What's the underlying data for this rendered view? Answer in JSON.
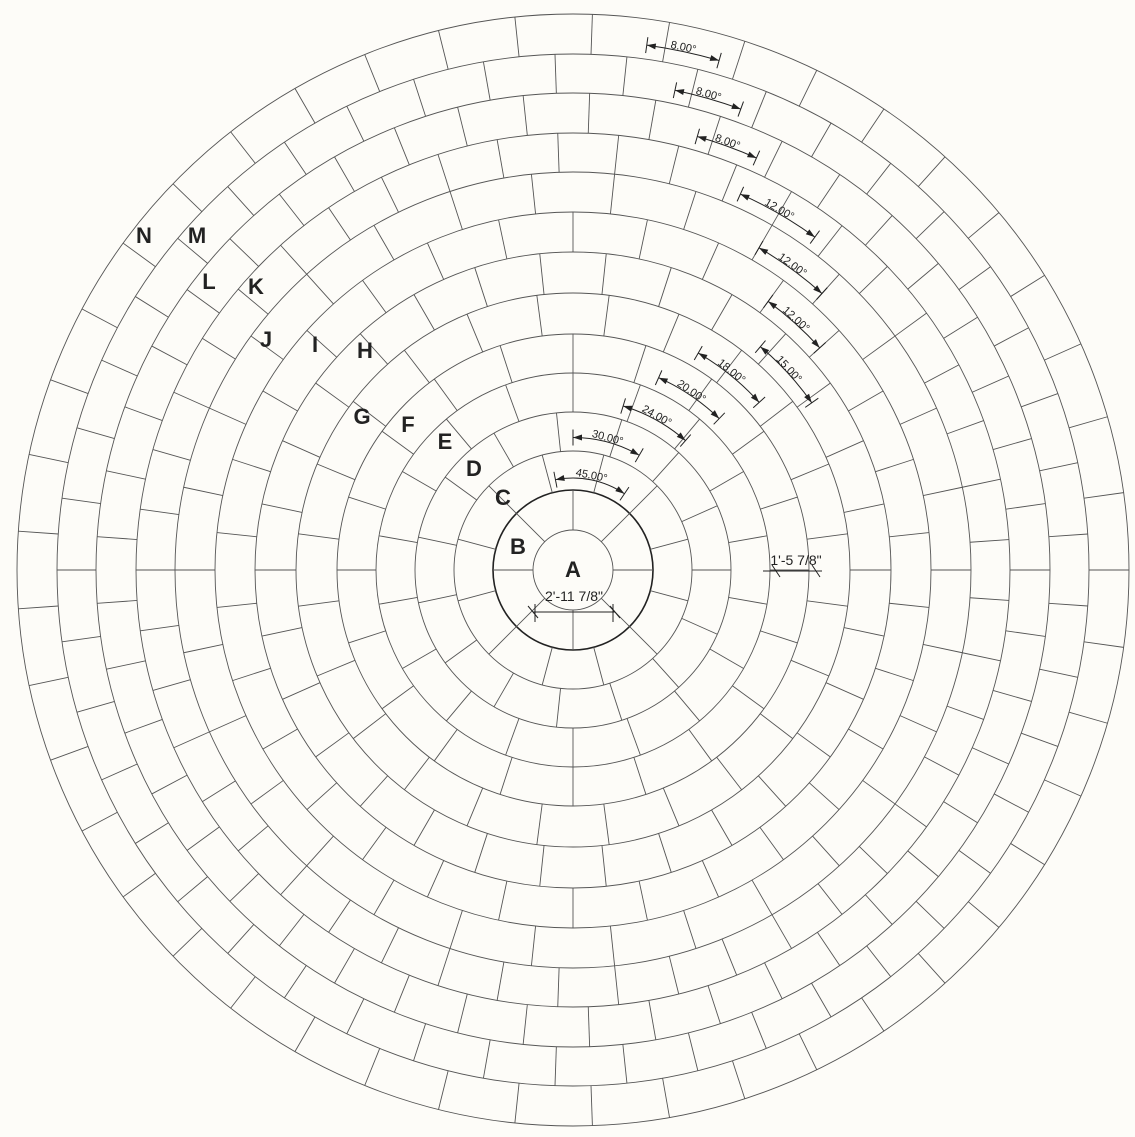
{
  "diagram": {
    "rings": [
      {
        "label": "A",
        "segment_angle": null
      },
      {
        "label": "B",
        "segment_angle": "45.00°"
      },
      {
        "label": "C",
        "segment_angle": "30.00°"
      },
      {
        "label": "D",
        "segment_angle": "24.00°"
      },
      {
        "label": "E",
        "segment_angle": "20.00°"
      },
      {
        "label": "F",
        "segment_angle": "18.00°"
      },
      {
        "label": "G",
        "segment_angle": "15.00°"
      },
      {
        "label": "H",
        "segment_angle": "12.00°"
      },
      {
        "label": "I",
        "segment_angle": "12.00°"
      },
      {
        "label": "J",
        "segment_angle": "12.00°"
      },
      {
        "label": "K",
        "segment_angle": "8.00°"
      },
      {
        "label": "L",
        "segment_angle": "8.00°"
      },
      {
        "label": "M",
        "segment_angle": "8.00°"
      },
      {
        "label": "N",
        "segment_angle": null
      }
    ],
    "center_diameter_label": "2'-11 7/8\"",
    "ring_width_label": "1'-5 7/8\""
  }
}
